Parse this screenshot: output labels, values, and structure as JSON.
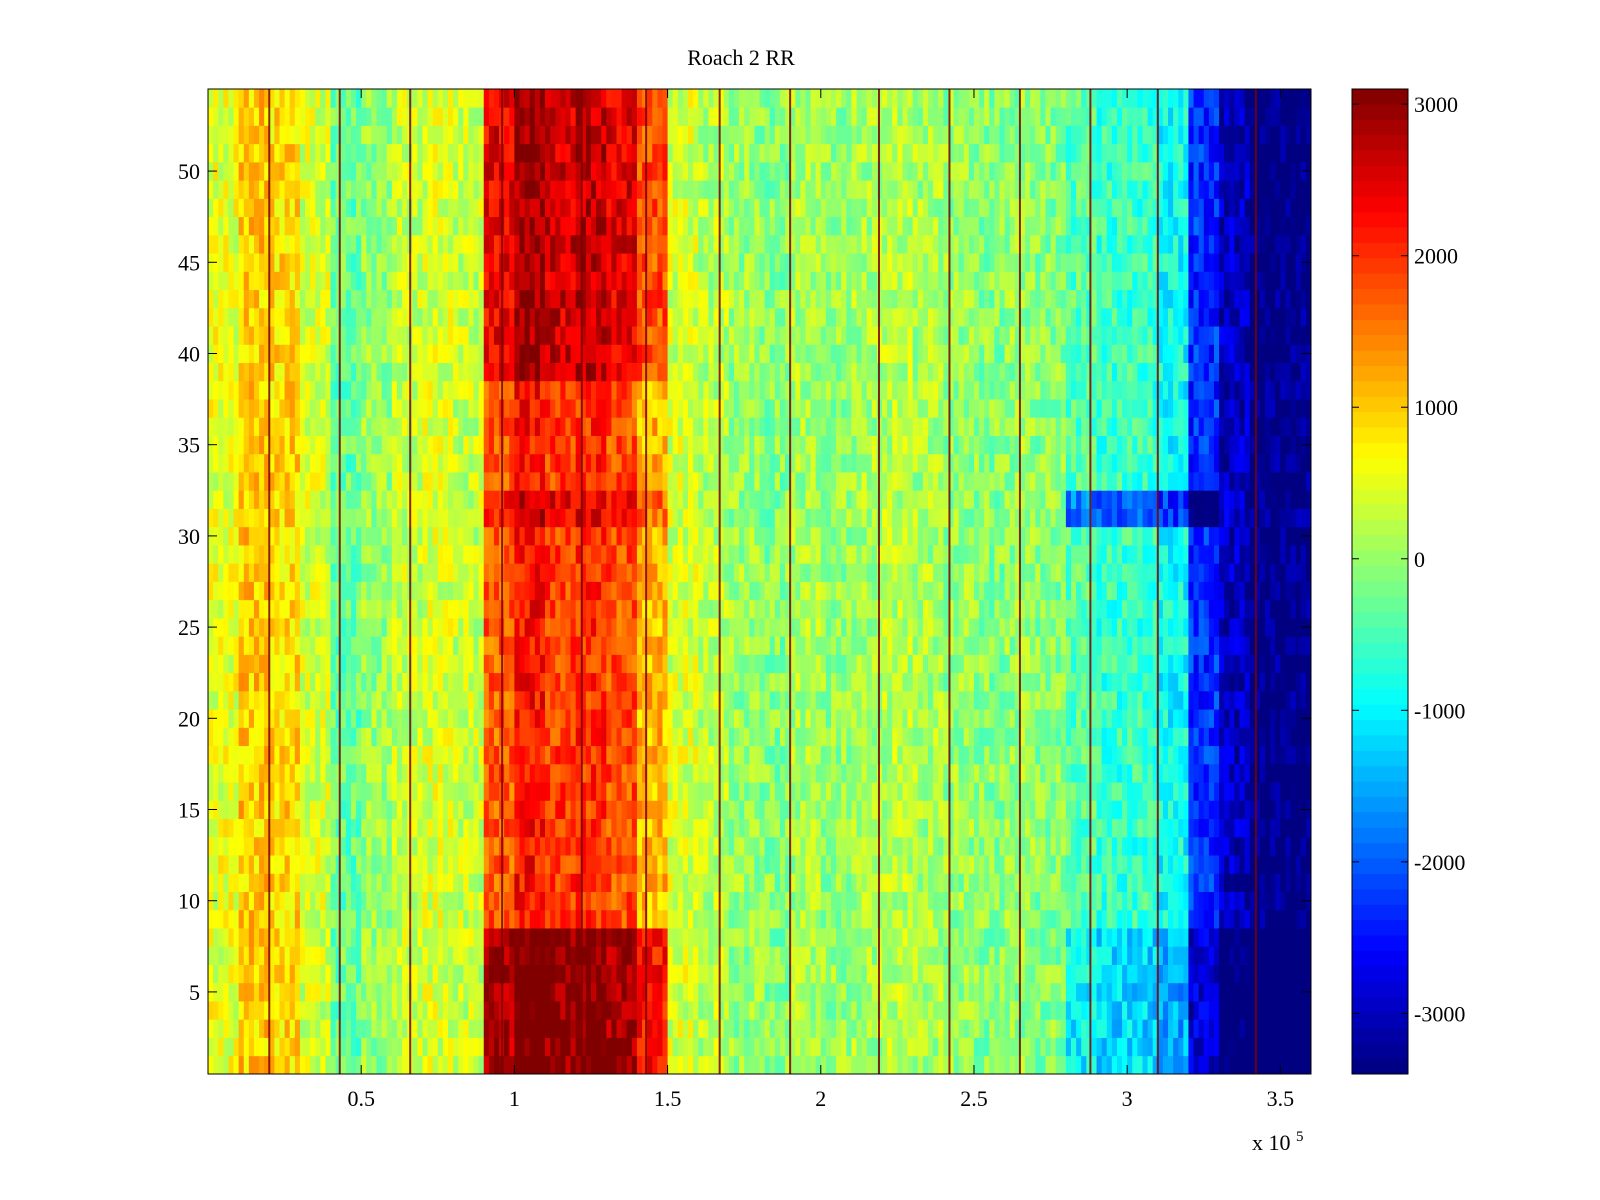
{
  "chart_data": {
    "type": "heatmap",
    "title": "Roach 2 RR",
    "xlabel": "",
    "ylabel": "",
    "x_multiplier_label": "x 10",
    "x_multiplier_exponent": "5",
    "xlim": [
      0,
      3.6
    ],
    "ylim": [
      0.5,
      54.5
    ],
    "x_ticks": [
      {
        "value": 0.5,
        "label": "0.5"
      },
      {
        "value": 1,
        "label": "1"
      },
      {
        "value": 1.5,
        "label": "1.5"
      },
      {
        "value": 2,
        "label": "2"
      },
      {
        "value": 2.5,
        "label": "2.5"
      },
      {
        "value": 3,
        "label": "3"
      },
      {
        "value": 3.5,
        "label": "3.5"
      }
    ],
    "y_ticks": [
      {
        "value": 5,
        "label": "5"
      },
      {
        "value": 10,
        "label": "10"
      },
      {
        "value": 15,
        "label": "15"
      },
      {
        "value": 20,
        "label": "20"
      },
      {
        "value": 25,
        "label": "25"
      },
      {
        "value": 30,
        "label": "30"
      },
      {
        "value": 35,
        "label": "35"
      },
      {
        "value": 40,
        "label": "40"
      },
      {
        "value": 45,
        "label": "45"
      },
      {
        "value": 50,
        "label": "50"
      }
    ],
    "colorbar": {
      "colormap": "jet",
      "range": [
        -3400,
        3100
      ],
      "ticks": [
        {
          "value": 3000,
          "label": "3000"
        },
        {
          "value": 2000,
          "label": "2000"
        },
        {
          "value": 1000,
          "label": "1000"
        },
        {
          "value": 0,
          "label": "0"
        },
        {
          "value": -1000,
          "label": "-1000"
        },
        {
          "value": -2000,
          "label": "-2000"
        },
        {
          "value": -3000,
          "label": "-3000"
        }
      ]
    },
    "rows": 54,
    "x_columns": [
      0.05,
      0.15,
      0.25,
      0.35,
      0.45,
      0.55,
      0.65,
      0.75,
      0.85,
      0.95,
      1.05,
      1.15,
      1.25,
      1.35,
      1.45,
      1.55,
      1.65,
      1.75,
      1.85,
      1.95,
      2.05,
      2.15,
      2.25,
      2.35,
      2.45,
      2.55,
      2.65,
      2.75,
      2.85,
      2.95,
      3.05,
      3.15,
      3.25,
      3.35,
      3.45,
      3.55
    ],
    "column_base_values": [
      500,
      1000,
      900,
      400,
      -300,
      0,
      300,
      400,
      300,
      1700,
      2200,
      1900,
      2000,
      1800,
      1100,
      400,
      200,
      0,
      -100,
      100,
      0,
      100,
      200,
      100,
      0,
      -100,
      0,
      -100,
      -400,
      -600,
      -600,
      -900,
      -2300,
      -3000,
      -3400,
      -3400
    ],
    "row_bands": [
      {
        "rows": [
          1,
          8
        ],
        "delta": 1100
      },
      {
        "rows": [
          39,
          54
        ],
        "delta": 700
      },
      {
        "rows": [
          31,
          32
        ],
        "delta": 500
      }
    ],
    "vertical_stripes_x": [
      0.2,
      0.43,
      0.66,
      0.96,
      1.22,
      1.43,
      1.67,
      1.9,
      2.19,
      2.42,
      2.65,
      2.88,
      3.1,
      3.42
    ]
  }
}
